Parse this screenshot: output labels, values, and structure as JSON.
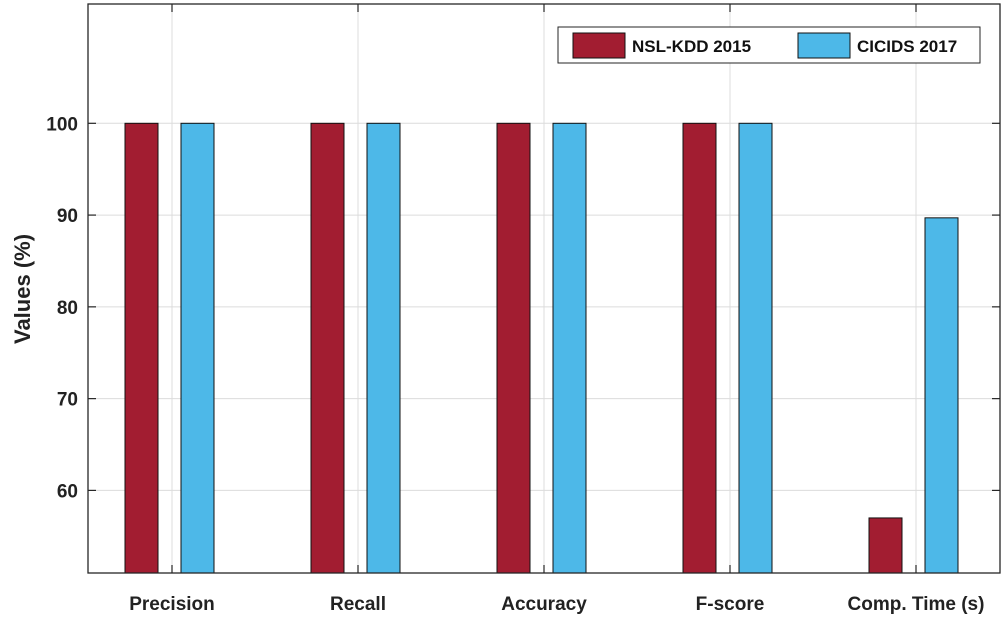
{
  "chart_data": {
    "type": "bar",
    "categories": [
      "Precision",
      "Recall",
      "Accuracy",
      "F-score",
      "Comp. Time (s)"
    ],
    "series": [
      {
        "name": "NSL-KDD 2015",
        "values": [
          100,
          100,
          100,
          100,
          57
        ],
        "color": "#a21d31"
      },
      {
        "name": "CICIDS 2017",
        "values": [
          100,
          100,
          100,
          100,
          89.7
        ],
        "color": "#4db8e8"
      }
    ],
    "title": "",
    "xlabel": "",
    "ylabel": "Values (%)",
    "ylim": [
      51,
      113
    ],
    "yticks": [
      60,
      70,
      80,
      90,
      100
    ],
    "grid": true,
    "legend_position": "top-right"
  }
}
